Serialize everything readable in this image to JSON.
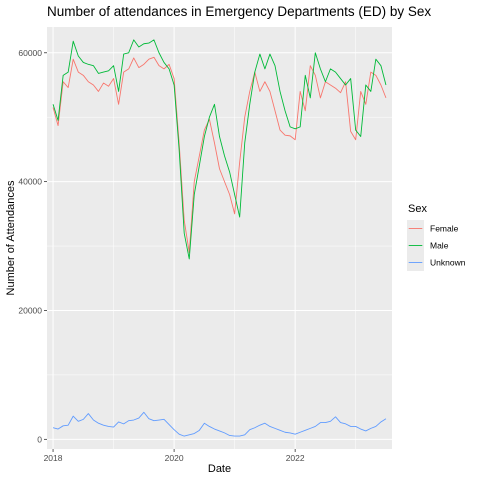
{
  "chart_data": {
    "type": "line",
    "title": "Number of attendances in Emergency Departments (ED) by Sex",
    "xlabel": "Date",
    "ylabel": "Number of Attendances",
    "x_ticks": [
      "2018",
      "2020",
      "2022"
    ],
    "y_ticks": [
      "0",
      "20000",
      "40000",
      "60000"
    ],
    "xlim": [
      2017.9,
      2023.6
    ],
    "ylim": [
      -1500,
      64000
    ],
    "legend": {
      "title": "Sex",
      "position": "right"
    },
    "grid": true,
    "x": [
      2018.0,
      2018.083,
      2018.167,
      2018.25,
      2018.333,
      2018.417,
      2018.5,
      2018.583,
      2018.667,
      2018.75,
      2018.833,
      2018.917,
      2019.0,
      2019.083,
      2019.167,
      2019.25,
      2019.333,
      2019.417,
      2019.5,
      2019.583,
      2019.667,
      2019.75,
      2019.833,
      2019.917,
      2020.0,
      2020.083,
      2020.167,
      2020.25,
      2020.333,
      2020.417,
      2020.5,
      2020.583,
      2020.667,
      2020.75,
      2020.833,
      2020.917,
      2021.0,
      2021.083,
      2021.167,
      2021.25,
      2021.333,
      2021.417,
      2021.5,
      2021.583,
      2021.667,
      2021.75,
      2021.833,
      2021.917,
      2022.0,
      2022.083,
      2022.167,
      2022.25,
      2022.333,
      2022.417,
      2022.5,
      2022.583,
      2022.667,
      2022.75,
      2022.833,
      2022.917,
      2023.0,
      2023.083,
      2023.167,
      2023.25,
      2023.333,
      2023.417,
      2023.5
    ],
    "series": [
      {
        "name": "Female",
        "color": "#F8766D",
        "values": [
          51500,
          48700,
          55500,
          54600,
          59000,
          57000,
          56500,
          55500,
          55000,
          54000,
          55300,
          54800,
          56000,
          52000,
          57000,
          57500,
          59200,
          57700,
          58200,
          59000,
          59300,
          58000,
          57500,
          58200,
          56000,
          46000,
          34000,
          29000,
          40000,
          44000,
          48000,
          49700,
          46000,
          42000,
          40000,
          38000,
          35000,
          43000,
          50000,
          54000,
          57000,
          54000,
          55500,
          54000,
          51000,
          48000,
          47200,
          47100,
          46500,
          54000,
          51000,
          58000,
          56500,
          53000,
          55500,
          55000,
          54500,
          53800,
          55500,
          47800,
          46500,
          54000,
          52000,
          57000,
          56500,
          55000,
          53000
        ]
      },
      {
        "name": "Male",
        "color": "#00BA38",
        "values": [
          52000,
          49500,
          56500,
          57000,
          61800,
          59500,
          58500,
          58200,
          58000,
          56800,
          57000,
          57200,
          58000,
          54000,
          59800,
          60000,
          62000,
          60900,
          61400,
          61500,
          62000,
          60000,
          58500,
          57500,
          55000,
          45000,
          32000,
          28000,
          38000,
          42500,
          47000,
          50000,
          52000,
          47000,
          44000,
          41500,
          38000,
          34500,
          46000,
          52000,
          57000,
          59800,
          57500,
          59800,
          58000,
          54000,
          51000,
          48500,
          48200,
          48500,
          56500,
          53000,
          60000,
          57500,
          55500,
          57500,
          57000,
          56000,
          55000,
          56000,
          48000,
          47000,
          55000,
          54000,
          59000,
          58000,
          55000
        ]
      },
      {
        "name": "Unknown",
        "color": "#619CFF",
        "values": [
          1800,
          1600,
          2100,
          2200,
          3600,
          2800,
          3100,
          4000,
          3000,
          2500,
          2200,
          2000,
          1900,
          2700,
          2400,
          2900,
          3000,
          3300,
          4200,
          3200,
          2900,
          3000,
          3100,
          2300,
          1500,
          800,
          500,
          700,
          900,
          1400,
          2500,
          2000,
          1600,
          1300,
          1000,
          600,
          500,
          500,
          700,
          1500,
          1800,
          2200,
          2500,
          2000,
          1700,
          1400,
          1100,
          1000,
          800,
          1100,
          1400,
          1700,
          2000,
          2600,
          2600,
          2800,
          3500,
          2600,
          2400,
          2000,
          2000,
          1600,
          1300,
          1700,
          2000,
          2700,
          3200
        ]
      }
    ]
  }
}
